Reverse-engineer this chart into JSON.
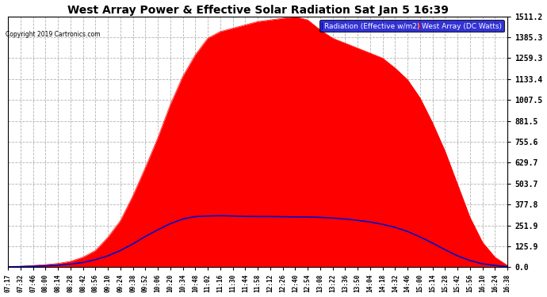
{
  "title": "West Array Power & Effective Solar Radiation Sat Jan 5 16:39",
  "copyright": "Copyright 2019 Cartronics.com",
  "legend_radiation": "Radiation (Effective w/m2)",
  "legend_west": "West Array (DC Watts)",
  "bg_color": "#ffffff",
  "plot_bg_color": "#ffffff",
  "title_color": "#000000",
  "grid_color": "#aaaaaa",
  "radiation_color": "#0000cc",
  "west_color": "#ff0000",
  "legend_rad_bg": "#0000cc",
  "legend_west_bg": "#ff0000",
  "yticks": [
    0.0,
    125.9,
    251.9,
    377.8,
    503.7,
    629.7,
    755.6,
    881.5,
    1007.5,
    1133.4,
    1259.3,
    1385.3,
    1511.2
  ],
  "ylim": [
    0.0,
    1511.2
  ],
  "xtick_labels": [
    "07:17",
    "07:32",
    "07:46",
    "08:00",
    "08:14",
    "08:28",
    "08:42",
    "08:56",
    "09:10",
    "09:24",
    "09:38",
    "09:52",
    "10:06",
    "10:20",
    "10:34",
    "10:48",
    "11:02",
    "11:16",
    "11:30",
    "11:44",
    "11:58",
    "12:12",
    "12:26",
    "12:40",
    "12:54",
    "13:08",
    "13:22",
    "13:36",
    "13:50",
    "14:04",
    "14:18",
    "14:32",
    "14:46",
    "15:00",
    "15:14",
    "15:28",
    "15:42",
    "15:56",
    "16:10",
    "16:24",
    "16:38"
  ],
  "west_values": [
    0,
    5,
    10,
    15,
    22,
    35,
    60,
    100,
    180,
    280,
    430,
    600,
    780,
    980,
    1150,
    1280,
    1380,
    1420,
    1440,
    1460,
    1480,
    1490,
    1500,
    1510,
    1490,
    1430,
    1380,
    1350,
    1320,
    1290,
    1260,
    1200,
    1130,
    1020,
    870,
    700,
    500,
    300,
    150,
    60,
    10
  ],
  "radiation_values": [
    2,
    3,
    5,
    8,
    12,
    18,
    28,
    45,
    68,
    100,
    140,
    185,
    225,
    262,
    290,
    305,
    308,
    310,
    308,
    306,
    305,
    305,
    304,
    303,
    302,
    300,
    296,
    290,
    282,
    272,
    258,
    240,
    215,
    182,
    145,
    105,
    68,
    40,
    20,
    10,
    3
  ]
}
